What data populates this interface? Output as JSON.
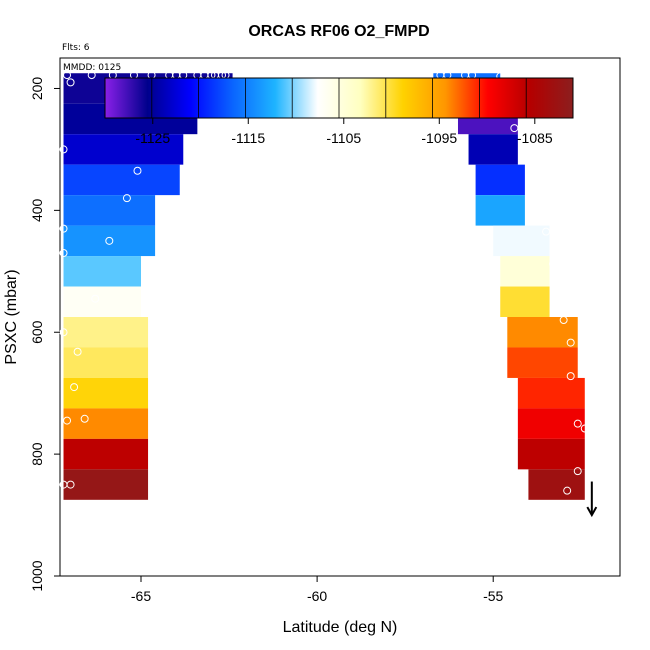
{
  "chart_data": {
    "type": "heatmap",
    "title": "ORCAS RF06 O2_FMPD",
    "flts_label": "Flts: 6",
    "mmdd_label": "MMDD: 0125",
    "xlabel": "Latitude (deg N)",
    "ylabel": "PSXC (mbar)",
    "xlim": [
      -67.3,
      -51.4
    ],
    "ylim": [
      1000,
      150
    ],
    "x_ticks": [
      -65,
      -60,
      -55
    ],
    "x_tick_labels": [
      "-65",
      "-60",
      "-55"
    ],
    "y_ticks": [
      200,
      400,
      600,
      800,
      1000
    ],
    "y_tick_labels": [
      "200",
      "400",
      "600",
      "800",
      "1000"
    ],
    "colorbar": {
      "range": [
        -1130,
        -1081
      ],
      "ticks": [
        -1125,
        -1115,
        -1105,
        -1095,
        -1085
      ],
      "tick_labels": [
        "-1125",
        "-1115",
        "-1105",
        "-1095",
        "-1085"
      ],
      "stops": [
        "#8a20e8",
        "#00008c",
        "#0000ff",
        "#0a64ff",
        "#1eb4ff",
        "#ffffff",
        "#ffffc0",
        "#ffd200",
        "#ff9600",
        "#ff0000",
        "#b40000",
        "#8c1e1e"
      ]
    },
    "cells": [
      {
        "x0": -67.2,
        "x1": -62.4,
        "p0": 175,
        "p1": 225,
        "v": -1126
      },
      {
        "x0": -67.2,
        "x1": -63.4,
        "p0": 225,
        "p1": 275,
        "v": -1125
      },
      {
        "x0": -67.2,
        "x1": -63.8,
        "p0": 275,
        "p1": 325,
        "v": -1123
      },
      {
        "x0": -67.2,
        "x1": -63.9,
        "p0": 325,
        "p1": 375,
        "v": -1118
      },
      {
        "x0": -67.2,
        "x1": -64.6,
        "p0": 375,
        "p1": 425,
        "v": -1116
      },
      {
        "x0": -67.2,
        "x1": -64.6,
        "p0": 425,
        "p1": 475,
        "v": -1114
      },
      {
        "x0": -67.2,
        "x1": -65.0,
        "p0": 475,
        "p1": 525,
        "v": -1111
      },
      {
        "x0": -67.2,
        "x1": -65.0,
        "p0": 525,
        "p1": 575,
        "v": -1107
      },
      {
        "x0": -67.2,
        "x1": -64.8,
        "p0": 575,
        "p1": 625,
        "v": -1102
      },
      {
        "x0": -67.2,
        "x1": -64.8,
        "p0": 625,
        "p1": 675,
        "v": -1101
      },
      {
        "x0": -67.2,
        "x1": -64.8,
        "p0": 675,
        "p1": 725,
        "v": -1099
      },
      {
        "x0": -67.2,
        "x1": -64.8,
        "p0": 725,
        "p1": 775,
        "v": -1094
      },
      {
        "x0": -67.2,
        "x1": -64.8,
        "p0": 775,
        "p1": 825,
        "v": -1086
      },
      {
        "x0": -67.2,
        "x1": -64.8,
        "p0": 825,
        "p1": 875,
        "v": -1082
      },
      {
        "x0": -56.7,
        "x1": -54.8,
        "p0": 175,
        "p1": 225,
        "v": -1116
      },
      {
        "x0": -56.0,
        "x1": -54.3,
        "p0": 225,
        "p1": 275,
        "v": -1128
      },
      {
        "x0": -55.7,
        "x1": -54.3,
        "p0": 275,
        "p1": 325,
        "v": -1124
      },
      {
        "x0": -55.5,
        "x1": -54.1,
        "p0": 325,
        "p1": 375,
        "v": -1119
      },
      {
        "x0": -55.5,
        "x1": -54.1,
        "p0": 375,
        "p1": 425,
        "v": -1113
      },
      {
        "x0": -55.0,
        "x1": -53.4,
        "p0": 425,
        "p1": 475,
        "v": -1108
      },
      {
        "x0": -54.8,
        "x1": -53.4,
        "p0": 475,
        "p1": 525,
        "v": -1105
      },
      {
        "x0": -54.8,
        "x1": -53.4,
        "p0": 525,
        "p1": 575,
        "v": -1100
      },
      {
        "x0": -54.6,
        "x1": -52.6,
        "p0": 575,
        "p1": 625,
        "v": -1094
      },
      {
        "x0": -54.6,
        "x1": -52.6,
        "p0": 625,
        "p1": 675,
        "v": -1092
      },
      {
        "x0": -54.3,
        "x1": -52.4,
        "p0": 675,
        "p1": 725,
        "v": -1091
      },
      {
        "x0": -54.3,
        "x1": -52.4,
        "p0": 725,
        "p1": 775,
        "v": -1089
      },
      {
        "x0": -54.3,
        "x1": -52.4,
        "p0": 775,
        "p1": 825,
        "v": -1086
      },
      {
        "x0": -54.0,
        "x1": -52.4,
        "p0": 825,
        "p1": 875,
        "v": -1083
      }
    ],
    "points": [
      {
        "x": -67.1,
        "p": 178
      },
      {
        "x": -67.0,
        "p": 190
      },
      {
        "x": -66.4,
        "p": 178
      },
      {
        "x": -65.8,
        "p": 178
      },
      {
        "x": -65.2,
        "p": 178
      },
      {
        "x": -64.7,
        "p": 178
      },
      {
        "x": -64.2,
        "p": 178
      },
      {
        "x": -64.0,
        "p": 178
      },
      {
        "x": -63.8,
        "p": 178
      },
      {
        "x": -63.4,
        "p": 178
      },
      {
        "x": -63.2,
        "p": 178
      },
      {
        "x": -63.0,
        "p": 178
      },
      {
        "x": -62.9,
        "p": 178
      },
      {
        "x": -62.7,
        "p": 178
      },
      {
        "x": -62.6,
        "p": 178
      },
      {
        "x": -64.5,
        "p": 228
      },
      {
        "x": -65.1,
        "p": 335
      },
      {
        "x": -65.4,
        "p": 380
      },
      {
        "x": -65.9,
        "p": 450
      },
      {
        "x": -66.3,
        "p": 545
      },
      {
        "x": -66.8,
        "p": 632
      },
      {
        "x": -66.9,
        "p": 690
      },
      {
        "x": -67.1,
        "p": 745
      },
      {
        "x": -66.6,
        "p": 742
      },
      {
        "x": -67.2,
        "p": 850
      },
      {
        "x": -67.0,
        "p": 850
      },
      {
        "x": -67.2,
        "p": 300
      },
      {
        "x": -67.2,
        "p": 470
      },
      {
        "x": -67.2,
        "p": 600
      },
      {
        "x": -67.2,
        "p": 430
      },
      {
        "x": -56.5,
        "p": 178
      },
      {
        "x": -56.3,
        "p": 178
      },
      {
        "x": -55.8,
        "p": 178
      },
      {
        "x": -55.6,
        "p": 178
      },
      {
        "x": -54.8,
        "p": 180
      },
      {
        "x": -54.7,
        "p": 186
      },
      {
        "x": -54.4,
        "p": 228
      },
      {
        "x": -54.4,
        "p": 265
      },
      {
        "x": -54.0,
        "p": 318
      },
      {
        "x": -53.8,
        "p": 370
      },
      {
        "x": -53.5,
        "p": 435
      },
      {
        "x": -53.3,
        "p": 488
      },
      {
        "x": -53.2,
        "p": 525
      },
      {
        "x": -53.0,
        "p": 580
      },
      {
        "x": -52.8,
        "p": 617
      },
      {
        "x": -52.8,
        "p": 672
      },
      {
        "x": -52.6,
        "p": 750
      },
      {
        "x": -52.4,
        "p": 758
      },
      {
        "x": -52.6,
        "p": 828
      },
      {
        "x": -52.9,
        "p": 860
      }
    ],
    "arrow": {
      "x": -52.2,
      "p": 845,
      "p_to": 900
    }
  }
}
